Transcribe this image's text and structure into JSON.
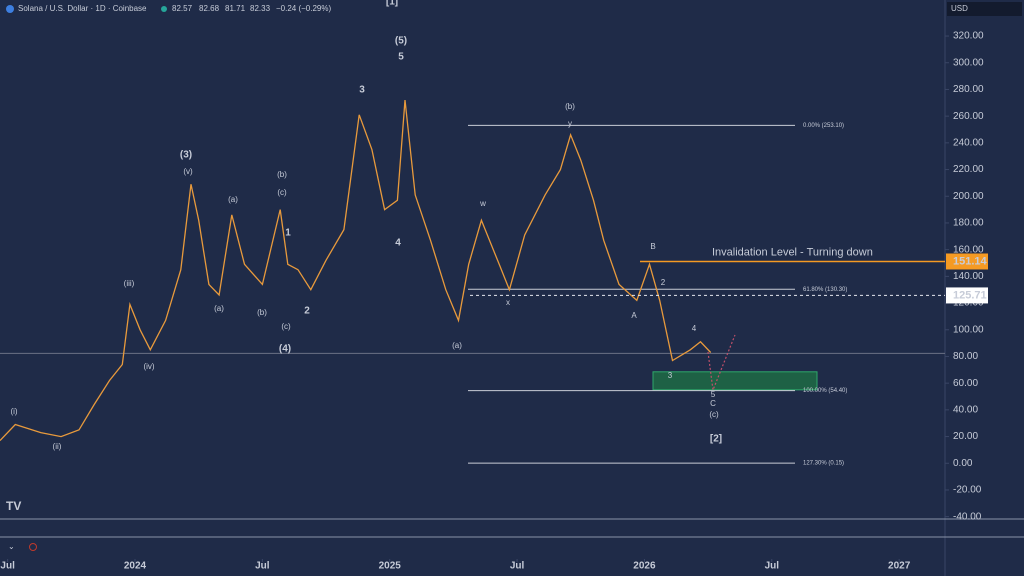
{
  "chart_data": {
    "type": "line",
    "header": {
      "symbol": "Solana / U.S. Dollar · 1D · Coinbase",
      "open": 82.57,
      "high": 82.68,
      "low": 81.71,
      "close": 82.33,
      "change": {
        "value": -0.24,
        "label": "−0.24 (−0.29%)"
      }
    },
    "currency": "USD",
    "x": [
      2023.47,
      2023.53,
      2023.63,
      2023.71,
      2023.78,
      2023.84,
      2023.9,
      2023.95,
      2023.98,
      2024.02,
      2024.06,
      2024.12,
      2024.18,
      2024.22,
      2024.25,
      2024.29,
      2024.33,
      2024.38,
      2024.43,
      2024.5,
      2024.57,
      2024.6,
      2024.64,
      2024.69,
      2024.75,
      2024.82,
      2024.88,
      2024.93,
      2024.98,
      2025.03,
      2025.06,
      2025.1,
      2025.16,
      2025.22,
      2025.27,
      2025.31,
      2025.36,
      2025.43,
      2025.47,
      2025.53,
      2025.61,
      2025.67,
      2025.71,
      2025.75,
      2025.8,
      2025.84,
      2025.9,
      2025.97,
      2026.02,
      2026.06,
      2026.11,
      2026.18,
      2026.22,
      2026.26
    ],
    "values": [
      17,
      29,
      23,
      20,
      25,
      44,
      62,
      74,
      119,
      100,
      85,
      107,
      145,
      209,
      182,
      134,
      126,
      186,
      149,
      134,
      190,
      149,
      145,
      130,
      152,
      175,
      261,
      235,
      190,
      197,
      272,
      201,
      167,
      130,
      107,
      149,
      182,
      149,
      130,
      171,
      201,
      220,
      246,
      227,
      197,
      167,
      134,
      122,
      149,
      122,
      77,
      85,
      91,
      83
    ],
    "color": "#e89a3c",
    "xlim": [
      2023.47,
      2027.18
    ],
    "xticks": [
      {
        "value": 2023.5,
        "label": "Jul"
      },
      {
        "value": 2024,
        "label": "2024"
      },
      {
        "value": 2024.5,
        "label": "Jul"
      },
      {
        "value": 2025,
        "label": "2025"
      },
      {
        "value": 2025.5,
        "label": "Jul"
      },
      {
        "value": 2026,
        "label": "2026"
      },
      {
        "value": 2026.5,
        "label": "Jul"
      },
      {
        "value": 2027,
        "label": "2027"
      }
    ],
    "ylim": [
      -41,
      347
    ],
    "yticks": [
      {
        "value": -40,
        "label": "-40.00"
      },
      {
        "value": -20,
        "label": "-20.00"
      },
      {
        "value": 0,
        "label": "0.00"
      },
      {
        "value": 20,
        "label": "20.00"
      },
      {
        "value": 40,
        "label": "40.00"
      },
      {
        "value": 60,
        "label": "60.00"
      },
      {
        "value": 80,
        "label": "80.00"
      },
      {
        "value": 100,
        "label": "100.00"
      },
      {
        "value": 120,
        "label": "120.00"
      },
      {
        "value": 140,
        "label": "140.00"
      },
      {
        "value": 160,
        "label": "160.00"
      },
      {
        "value": 180,
        "label": "180.00"
      },
      {
        "value": 200,
        "label": "200.00"
      },
      {
        "value": 220,
        "label": "220.00"
      },
      {
        "value": 240,
        "label": "240.00"
      },
      {
        "value": 260,
        "label": "260.00"
      },
      {
        "value": 280,
        "label": "280.00"
      },
      {
        "value": 300,
        "label": "300.00"
      },
      {
        "value": 320,
        "label": "320.00"
      }
    ],
    "fib_levels": [
      {
        "value": 253.1,
        "label": "0.00% (253.10)"
      },
      {
        "value": 130.3,
        "label": "61.80% (130.30)"
      },
      {
        "value": 54.4,
        "label": "100.00% (54.40)"
      },
      {
        "value": 0.15,
        "label": "127.30% (0.15)"
      }
    ],
    "invalidation": {
      "label": "Invalidation Level - Turning down",
      "value": 151.14,
      "color": "#f59a23"
    },
    "level": 125.71,
    "zone": [
      55,
      68.5
    ],
    "wave_labels": [
      {
        "text": "(i)",
        "color": "#5b8ff0"
      },
      {
        "text": "(ii)",
        "color": "#5b8ff0"
      },
      {
        "text": "(iii)",
        "color": "#5b8ff0"
      },
      {
        "text": "(iv)",
        "color": "#5b8ff0"
      },
      {
        "text": "(v)",
        "color": "#5b8ff0"
      },
      {
        "text": "(3)",
        "color": "#e8a33d"
      },
      {
        "text": "(a)",
        "color": "#a9c1e8"
      },
      {
        "text": "(a)",
        "color": "#e8a33d"
      },
      {
        "text": "(b)",
        "color": "#a9c1e8"
      },
      {
        "text": "(b)",
        "color": "#e8a33d"
      },
      {
        "text": "(c)",
        "color": "#a9c1e8"
      },
      {
        "text": "1",
        "color": "#e8a33d"
      },
      {
        "text": "(c)",
        "color": "#e8a33d"
      },
      {
        "text": "2",
        "color": "#e8a33d"
      },
      {
        "text": "(4)",
        "color": "#e8a33d"
      },
      {
        "text": "3",
        "color": "#e8a33d"
      },
      {
        "text": "(5)",
        "color": "#e8a33d"
      },
      {
        "text": "5",
        "color": "#e8a33d"
      },
      {
        "text": "4",
        "color": "#e8a33d"
      },
      {
        "text": "(a)",
        "color": "#e8a33d"
      },
      {
        "text": "w",
        "color": "#e8a33d"
      },
      {
        "text": "x",
        "color": "#e8a33d"
      },
      {
        "text": "y",
        "color": "#e8a33d"
      },
      {
        "text": "(b)",
        "color": "#e8a33d"
      },
      {
        "text": "B",
        "color": "#d0d4de"
      },
      {
        "text": "2",
        "color": "#d0d4de"
      },
      {
        "text": "A",
        "color": "#d0d4de"
      },
      {
        "text": "3",
        "color": "#d0d4de"
      },
      {
        "text": "4",
        "color": "#d0d4de"
      },
      {
        "text": "5",
        "color": "#d0d4de"
      },
      {
        "text": "C",
        "color": "#d0d4de"
      },
      {
        "text": "(c)",
        "color": "#e8a33d"
      },
      {
        "text": "[2]",
        "color": "#f5d020"
      },
      {
        "text": "[1]",
        "color": "#d0d4de"
      }
    ]
  }
}
